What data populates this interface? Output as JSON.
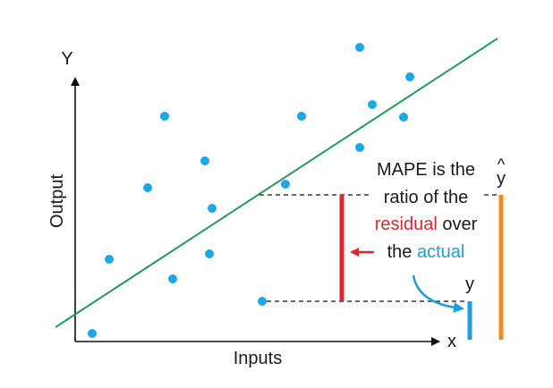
{
  "axes": {
    "y_label": "Y",
    "x_label": "x",
    "y_title": "Output",
    "x_title": "Inputs"
  },
  "annotation": {
    "line1_a": "MAPE is the",
    "hat_symbol": "^",
    "hat_y": "y",
    "line2": "ratio of the",
    "line3_colored": "residual",
    "line3_rest": " over",
    "line4_prefix": "the ",
    "line4_colored": "actual",
    "y_actual_label": "y"
  },
  "colors": {
    "points": "#19a9e6",
    "fit_line": "#1e9e57",
    "residual": "#e3262b",
    "actual_bar": "#1aa0e0",
    "predicted_bar": "#f28c1f",
    "axis": "#111111"
  },
  "icons": [
    "arrow-up-icon",
    "arrow-right-icon",
    "arrow-left-icon",
    "curved-arrow-icon"
  ]
}
